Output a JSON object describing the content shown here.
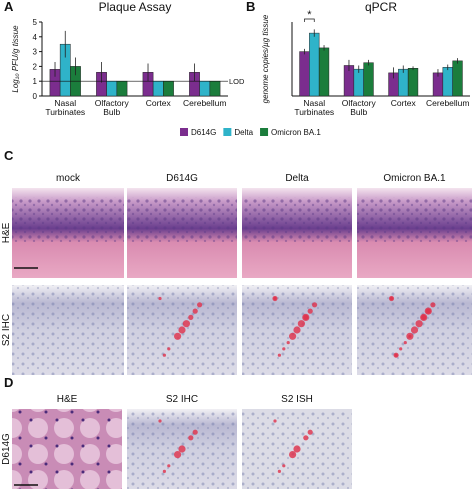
{
  "panels": [
    "A",
    "B",
    "C",
    "D"
  ],
  "chart_data": [
    {
      "type": "bar",
      "title": "Plaque Assay",
      "ylabel": "Log₁₀ PFU/g tissue",
      "categories": [
        "Nasal Turbinates",
        "Olfactory Bulb",
        "Cortex",
        "Cerebellum"
      ],
      "series": [
        {
          "name": "D614G",
          "color": "#7b2d8e",
          "values": [
            1.8,
            1.6,
            1.6,
            1.6
          ],
          "errors": [
            0.5,
            0.7,
            0.6,
            0.6
          ]
        },
        {
          "name": "Delta",
          "color": "#2fb3c9",
          "values": [
            3.5,
            1.0,
            1.0,
            1.0
          ],
          "errors": [
            0.9,
            0,
            0,
            0
          ]
        },
        {
          "name": "Omicron BA.1",
          "color": "#1b7d3c",
          "values": [
            2.0,
            1.0,
            1.0,
            1.0
          ],
          "errors": [
            0.6,
            0,
            0,
            0
          ]
        }
      ],
      "ylim": [
        0,
        5
      ],
      "yticks": [
        0,
        1,
        2,
        3,
        4,
        5
      ],
      "lod": 1,
      "lod_label": "LOD"
    },
    {
      "type": "bar",
      "title": "qPCR",
      "ylabel": "genome copies/µg tissue",
      "categories": [
        "Nasal Turbinates",
        "Olfactory Bulb",
        "Cortex",
        "Cerebellum"
      ],
      "series": [
        {
          "color": "#7b2d8e",
          "values": [
            4.8,
            3.3,
            2.5,
            2.5
          ],
          "errors": [
            0.3,
            0.6,
            0.6,
            0.4
          ]
        },
        {
          "color": "#2fb3c9",
          "values": [
            6.8,
            2.9,
            2.9,
            3.1
          ],
          "errors": [
            0.4,
            0.4,
            0.4,
            0.3
          ]
        },
        {
          "color": "#1b7d3c",
          "values": [
            5.2,
            3.6,
            3.0,
            3.8
          ],
          "errors": [
            0.3,
            0.3,
            0.2,
            0.3
          ]
        }
      ],
      "ylim": [
        0,
        8
      ],
      "significance": "*"
    }
  ],
  "histology": {
    "C": {
      "columns": [
        "mock",
        "D614G",
        "Delta",
        "Omicron BA.1"
      ],
      "rows": [
        "H&E",
        "S2 IHC"
      ]
    },
    "D": {
      "columns": [
        "H&E",
        "S2 IHC",
        "S2 ISH"
      ],
      "rows": [
        "D614G"
      ]
    }
  }
}
